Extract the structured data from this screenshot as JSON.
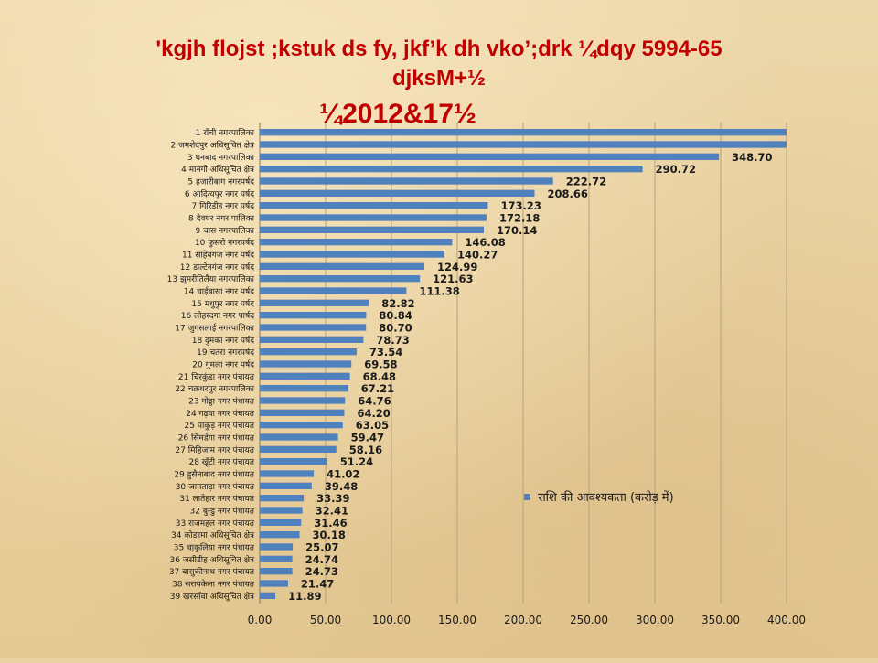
{
  "title": {
    "line1": "'kgjh flojst ;kstuk ds fy, jkf’k dh vko’;drk ¼dqy 5994-65",
    "line2": "djksM+½",
    "line3": "¼2012&17½"
  },
  "colors": {
    "bar": "#4f81bd",
    "title": "#c00000",
    "grid": "#b9a078",
    "axis_text": "#1a1a1a"
  },
  "chart_data": {
    "type": "bar",
    "orientation": "horizontal",
    "xlim": [
      0,
      400
    ],
    "grid": true,
    "legend_position": "right-middle",
    "x_ticks": [
      "0.00",
      "50.00",
      "100.00",
      "150.00",
      "200.00",
      "250.00",
      "300.00",
      "350.00",
      "400.00"
    ],
    "series": [
      {
        "name": "राशि की आवश्यकता (करोड़ में)"
      }
    ],
    "categories": [
      "1 राँची नगरपालिका",
      "2 जमशेदपुर अधिसूचित क्षेत्र",
      "3 धनबाद नगरपालिका",
      "4 मानगो अधिसूचित क्षेत्र",
      "5 हजारीबाग नगरपर्षद",
      "6 आदित्यपुर नगर पर्षद",
      "7 गिरिडीह नगर पर्षद",
      "8 देवघर नगर पालिका",
      "9 चास नगरपालिका",
      "10 फुसरो नगरपर्षद",
      "11 साहेबगंज नगर पर्षद",
      "12 डाल्टेनगंज नगर पर्षद",
      "13 झुमरीतिलैया नगरपालिका",
      "14 चाईबासा नगर पर्षद",
      "15 मधुपुर नगर पर्षद",
      "16 लोहरदगा नगर पार्षद",
      "17 जुगसलाई नगरपालिका",
      "18 दुमका नगर पर्षद",
      "19 चतरा नगरपर्षद",
      "20 गुमला नगर पर्षद",
      "21 चिरकुंडा नगर पंचायत",
      "22 चक्रधरपुर नगरपालिका",
      "23 गोड्डा नगर पंचायत",
      "24 गढ़वा नगर पंचायत",
      "25 पाकुड़ नगर पंचायत",
      "26 सिमडेगा नगर पंचायत",
      "27 मिहिजाम नगर पंचायत",
      "28 खूँटी नगर पंचायत",
      "29 हुसैनाबाद नगर पंचायत",
      "30 जामताड़ा नगर पंचायत",
      "31 लातेहार नगर पंचायत",
      "32 बुन्डु नगर पंचायत",
      "33 राजमहल नगर पंचायत",
      "34 कोडरमा अधिसूचित क्षेत्र",
      "35 चाकुलिया नगर पंचायत",
      "36 जसीडीह अधिसूचित क्षेत्र",
      "37 बासुकीनाथ नगर पंचायत",
      "38 सरायकेला नगर पंचायत",
      "39 खरसाँवा अधिसूचित क्षेत्र"
    ],
    "values": [
      400,
      400,
      348.7,
      290.72,
      222.72,
      208.66,
      173.23,
      172.18,
      170.14,
      146.08,
      140.27,
      124.99,
      121.63,
      111.38,
      82.82,
      80.84,
      80.7,
      78.73,
      73.54,
      69.58,
      68.48,
      67.21,
      64.76,
      64.2,
      63.05,
      59.47,
      58.16,
      51.24,
      41.02,
      39.48,
      33.39,
      32.41,
      31.46,
      30.18,
      25.07,
      24.74,
      24.73,
      21.47,
      11.89
    ],
    "data_labels": [
      "",
      "",
      "348.70",
      "290.72",
      "222.72",
      "208.66",
      "173.23",
      "172.18",
      "170.14",
      "146.08",
      "140.27",
      "124.99",
      "121.63",
      "111.38",
      "82.82",
      "80.84",
      "80.70",
      "78.73",
      "73.54",
      "69.58",
      "68.48",
      "67.21",
      "64.76",
      "64.20",
      "63.05",
      "59.47",
      "58.16",
      "51.24",
      "41.02",
      "39.48",
      "33.39",
      "32.41",
      "31.46",
      "30.18",
      "25.07",
      "24.74",
      "24.73",
      "21.47",
      "11.89"
    ]
  }
}
